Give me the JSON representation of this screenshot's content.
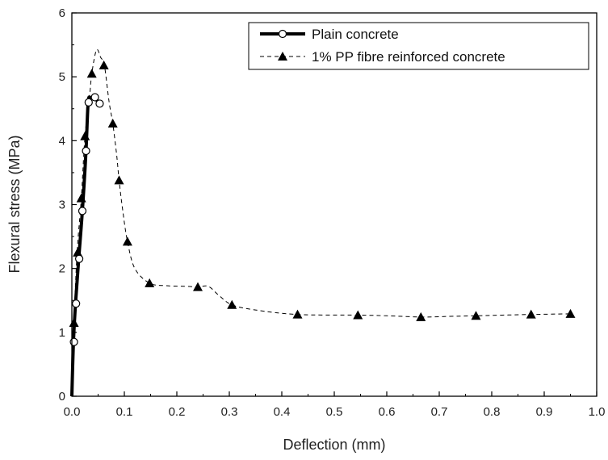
{
  "chart_data": {
    "type": "line",
    "xlabel": "Deflection (mm)",
    "ylabel": "Flexural stress (MPa)",
    "xlim": [
      0.0,
      1.0
    ],
    "ylim": [
      0,
      6
    ],
    "x_ticks": [
      "0.0",
      "0.1",
      "0.2",
      "0.3",
      "0.4",
      "0.5",
      "0.6",
      "0.7",
      "0.8",
      "0.9",
      "1.0"
    ],
    "y_ticks": [
      "0",
      "1",
      "2",
      "3",
      "4",
      "5",
      "6"
    ],
    "grid": false,
    "legend_position": "top-right",
    "series": [
      {
        "name": "Plain concrete",
        "line_style": "solid-thick",
        "marker": "open-circle",
        "color": "#000000",
        "curve": [
          [
            0.0,
            0.0
          ],
          [
            0.003,
            0.85
          ],
          [
            0.007,
            1.45
          ],
          [
            0.013,
            2.15
          ],
          [
            0.02,
            2.9
          ],
          [
            0.027,
            3.84
          ],
          [
            0.031,
            4.6
          ],
          [
            0.036,
            4.67
          ],
          [
            0.044,
            4.68
          ],
          [
            0.05,
            4.6
          ],
          [
            0.054,
            4.58
          ]
        ],
        "points": [
          [
            0.004,
            0.85
          ],
          [
            0.008,
            1.45
          ],
          [
            0.014,
            2.15
          ],
          [
            0.02,
            2.9
          ],
          [
            0.027,
            3.84
          ],
          [
            0.032,
            4.6
          ],
          [
            0.044,
            4.68
          ],
          [
            0.053,
            4.58
          ]
        ]
      },
      {
        "name": "1% PP fibre reinforced concrete",
        "line_style": "dashed",
        "marker": "filled-triangle",
        "color": "#000000",
        "curve": [
          [
            0.0,
            0.0
          ],
          [
            0.004,
            1.15
          ],
          [
            0.01,
            2.25
          ],
          [
            0.018,
            3.1
          ],
          [
            0.025,
            4.07
          ],
          [
            0.033,
            4.63
          ],
          [
            0.038,
            5.05
          ],
          [
            0.047,
            5.42
          ],
          [
            0.055,
            5.3
          ],
          [
            0.062,
            5.18
          ],
          [
            0.071,
            4.6
          ],
          [
            0.078,
            4.27
          ],
          [
            0.085,
            3.8
          ],
          [
            0.09,
            3.38
          ],
          [
            0.097,
            2.9
          ],
          [
            0.106,
            2.42
          ],
          [
            0.12,
            2.0
          ],
          [
            0.148,
            1.77
          ],
          [
            0.18,
            1.73
          ],
          [
            0.22,
            1.72
          ],
          [
            0.24,
            1.71
          ],
          [
            0.26,
            1.72
          ],
          [
            0.28,
            1.58
          ],
          [
            0.305,
            1.43
          ],
          [
            0.35,
            1.35
          ],
          [
            0.43,
            1.28
          ],
          [
            0.545,
            1.27
          ],
          [
            0.6,
            1.26
          ],
          [
            0.665,
            1.24
          ],
          [
            0.72,
            1.25
          ],
          [
            0.77,
            1.26
          ],
          [
            0.82,
            1.27
          ],
          [
            0.875,
            1.28
          ],
          [
            0.95,
            1.29
          ]
        ],
        "points": [
          [
            0.004,
            1.15
          ],
          [
            0.011,
            2.25
          ],
          [
            0.018,
            3.1
          ],
          [
            0.025,
            4.07
          ],
          [
            0.038,
            5.05
          ],
          [
            0.061,
            5.18
          ],
          [
            0.078,
            4.27
          ],
          [
            0.09,
            3.38
          ],
          [
            0.106,
            2.42
          ],
          [
            0.148,
            1.77
          ],
          [
            0.24,
            1.71
          ],
          [
            0.305,
            1.43
          ],
          [
            0.43,
            1.28
          ],
          [
            0.545,
            1.27
          ],
          [
            0.665,
            1.24
          ],
          [
            0.77,
            1.26
          ],
          [
            0.875,
            1.28
          ],
          [
            0.95,
            1.29
          ]
        ]
      }
    ]
  }
}
